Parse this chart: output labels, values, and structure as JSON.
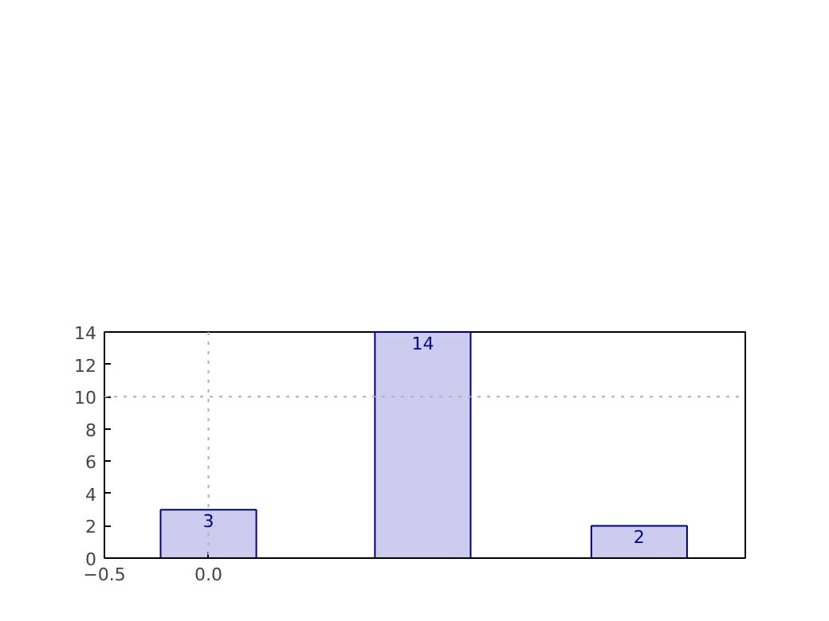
{
  "chart_data": {
    "type": "bar",
    "x": [
      0,
      1.03,
      2.07
    ],
    "values": [
      3,
      14,
      2
    ],
    "color": "#ccccee",
    "xlim": [
      -0.5,
      2.58
    ],
    "xticks": [
      -0.5,
      {
        "value": 0,
        "label": "0.0"
      }
    ],
    "ylim": [
      0,
      14
    ],
    "yticks": [
      0,
      2,
      4,
      6,
      8,
      10,
      12,
      14
    ],
    "data_labels": true,
    "grid": false,
    "ref_lines": [
      {
        "axis": "x",
        "value": 0,
        "label": null,
        "color": "#b0b0b0",
        "line_style": "dotted"
      },
      {
        "axis": "y",
        "value": 10,
        "label": null,
        "color": "#b0b0b0",
        "line_style": "dotted"
      }
    ]
  }
}
